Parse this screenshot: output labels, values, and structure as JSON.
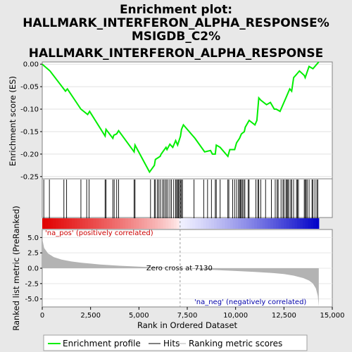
{
  "title_lines": [
    "Enrichment plot:",
    "HALLMARK_INTERFERON_ALPHA_RESPONSE%",
    "MSIGDB_C2%",
    "HALLMARK_INTERFERON_ALPHA_RESPONSE"
  ],
  "colors": {
    "es_line": "#00ee00",
    "hits": "#000000",
    "metric_fill": "#b3b3b3",
    "pos_label": "#cc0000",
    "neg_label": "#0000aa",
    "zero_line": "#999999"
  },
  "chart_data": {
    "type": "line",
    "x_range": [
      0,
      15000
    ],
    "n_genes": 14300,
    "x_ticks": [
      0,
      2500,
      5000,
      7500,
      10000,
      12500,
      15000
    ],
    "x_tick_labels": [
      "0",
      "2,500",
      "5,000",
      "7,500",
      "10,000",
      "12,500",
      "15,000"
    ],
    "xlabel": "Rank in Ordered Dataset",
    "es_panel": {
      "ylabel": "Enrichment score (ES)",
      "ylim": [
        -0.255,
        0.005
      ],
      "y_ticks": [
        0.0,
        -0.05,
        -0.1,
        -0.15,
        -0.2,
        -0.25
      ],
      "y_tick_labels": [
        "0.00",
        "-0.05",
        "-0.10",
        "-0.15",
        "-0.20",
        "-0.25"
      ],
      "es_curve": {
        "x": [
          0,
          400,
          1200,
          1300,
          2000,
          2350,
          2450,
          3250,
          3300,
          3650,
          3700,
          3850,
          3950,
          4750,
          4800,
          5550,
          5800,
          5850,
          6100,
          6150,
          6400,
          6450,
          6600,
          6750,
          6800,
          6900,
          7000,
          7150,
          7200,
          7300,
          7900,
          8400,
          8700,
          8800,
          8950,
          9000,
          9200,
          9600,
          9700,
          9850,
          9950,
          10050,
          10200,
          10300,
          10450,
          10500,
          10700,
          11000,
          11100,
          11200,
          11300,
          11600,
          11800,
          12000,
          12100,
          12300,
          12500,
          12600,
          12750,
          12800,
          12900,
          13000,
          13200,
          13300,
          13550,
          13600,
          13800,
          14000,
          14200,
          14300
        ],
        "y": [
          0.0,
          -0.015,
          -0.06,
          -0.055,
          -0.1,
          -0.112,
          -0.105,
          -0.16,
          -0.145,
          -0.165,
          -0.158,
          -0.155,
          -0.148,
          -0.195,
          -0.18,
          -0.24,
          -0.225,
          -0.212,
          -0.205,
          -0.2,
          -0.185,
          -0.19,
          -0.178,
          -0.185,
          -0.18,
          -0.17,
          -0.18,
          -0.16,
          -0.145,
          -0.135,
          -0.165,
          -0.195,
          -0.192,
          -0.2,
          -0.2,
          -0.18,
          -0.185,
          -0.205,
          -0.19,
          -0.19,
          -0.19,
          -0.175,
          -0.165,
          -0.155,
          -0.15,
          -0.14,
          -0.125,
          -0.135,
          -0.125,
          -0.075,
          -0.08,
          -0.09,
          -0.085,
          -0.1,
          -0.1,
          -0.105,
          -0.085,
          -0.075,
          -0.06,
          -0.055,
          -0.06,
          -0.03,
          -0.02,
          -0.015,
          -0.025,
          -0.03,
          -0.005,
          -0.01,
          0.0,
          0.005
        ]
      }
    },
    "hits_panel": {
      "hit_ranks": [
        80,
        370,
        1120,
        1260,
        2000,
        2300,
        2420,
        3250,
        3300,
        3650,
        3720,
        3850,
        3950,
        4750,
        4800,
        5600,
        5800,
        5850,
        5950,
        6020,
        6100,
        6200,
        6280,
        6350,
        6420,
        6500,
        6600,
        6680,
        6800,
        6900,
        6950,
        7000,
        7050,
        7100,
        7150,
        7200,
        7250,
        7850,
        8350,
        8550,
        8750,
        8950,
        9000,
        9200,
        9600,
        9650,
        9850,
        9950,
        10050,
        10150,
        10200,
        10250,
        10300,
        10350,
        10420,
        10480,
        10650,
        10700,
        11050,
        11150,
        11200,
        11300,
        11550,
        11850,
        12050,
        12150,
        12200,
        12350,
        12450,
        12500,
        12600,
        12650,
        12700,
        12750,
        12850,
        12900,
        13000,
        13150,
        13200,
        13250,
        13550,
        13600,
        13650,
        13700,
        13800,
        13950,
        14000,
        14100,
        14200,
        14250
      ]
    },
    "metric_panel": {
      "ylabel": "Ranked list metric (PreRanked)",
      "ylim": [
        -6.3,
        6.3
      ],
      "y_ticks": [
        5.0,
        2.5,
        0.0,
        -2.5,
        -5.0
      ],
      "y_tick_labels": [
        "5.0",
        "2.5",
        "0.0",
        "-2.5",
        "-5.0"
      ],
      "zero_cross": 7130,
      "zero_cross_label": "Zero cross at 7130",
      "pos_label": "'na_pos' (positively correlated)",
      "neg_label": "'na_neg' (negatively correlated)",
      "curve": {
        "x": [
          0,
          20,
          100,
          300,
          600,
          1000,
          1500,
          2000,
          3000,
          4000,
          5000,
          6000,
          7130,
          8000,
          9000,
          10000,
          11000,
          12000,
          12500,
          13000,
          13500,
          13800,
          14000,
          14150,
          14250,
          14300
        ],
        "y": [
          6.0,
          4.5,
          3.3,
          2.4,
          1.8,
          1.4,
          1.1,
          0.9,
          0.6,
          0.4,
          0.25,
          0.12,
          0.0,
          -0.15,
          -0.3,
          -0.45,
          -0.6,
          -0.8,
          -0.95,
          -1.2,
          -1.6,
          -2.0,
          -2.5,
          -3.3,
          -4.5,
          -6.2
        ]
      }
    },
    "legend": [
      "Enrichment profile",
      "Hits",
      "Ranking metric scores"
    ]
  }
}
